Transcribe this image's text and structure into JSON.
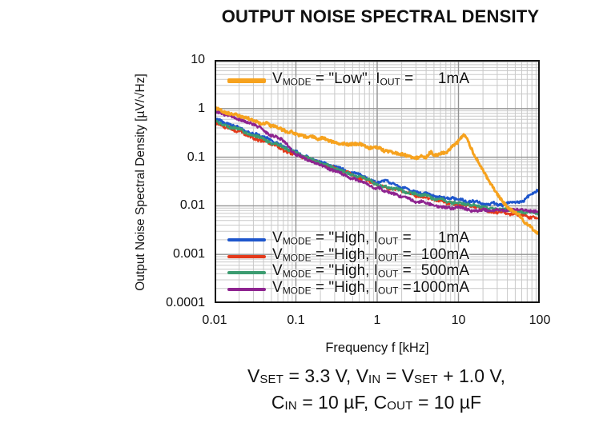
{
  "chart_data": {
    "type": "line",
    "title": "OUTPUT NOISE SPECTRAL DENSITY",
    "xlabel": "Frequency f [kHz]",
    "ylabel": "Output Noise Spectral Density [µV/√Hz]",
    "x_scale": "log",
    "y_scale": "log",
    "xlim": [
      0.01,
      100
    ],
    "ylim": [
      0.0001,
      10
    ],
    "x_ticks": [
      "0.01",
      "0.1",
      "1",
      "10",
      "100"
    ],
    "y_ticks": [
      "10",
      "1",
      "0.1",
      "0.01",
      "0.001",
      "0.0001"
    ],
    "grid": "log major and minor, both axes",
    "legend_position": "top entry inside plot top, four entries inside plot bottom-left",
    "series": [
      {
        "id": "low_1mA",
        "name": "VMODE = \"Low\", IOUT = 1mA",
        "color": "#F6A21E",
        "draw_order": 5,
        "stroke_width": 3,
        "points": [
          [
            0.01,
            1.05
          ],
          [
            0.013,
            0.9
          ],
          [
            0.02,
            0.72
          ],
          [
            0.03,
            0.58
          ],
          [
            0.05,
            0.44
          ],
          [
            0.07,
            0.37
          ],
          [
            0.1,
            0.3
          ],
          [
            0.15,
            0.26
          ],
          [
            0.2,
            0.24
          ],
          [
            0.3,
            0.21
          ],
          [
            0.5,
            0.185
          ],
          [
            0.7,
            0.168
          ],
          [
            1,
            0.15
          ],
          [
            1.5,
            0.13
          ],
          [
            2,
            0.115
          ],
          [
            2.5,
            0.105
          ],
          [
            3,
            0.1
          ],
          [
            4,
            0.099
          ],
          [
            4.6,
            0.132
          ],
          [
            5,
            0.106
          ],
          [
            6,
            0.113
          ],
          [
            7,
            0.128
          ],
          [
            8,
            0.152
          ],
          [
            9,
            0.185
          ],
          [
            10,
            0.222
          ],
          [
            11.5,
            0.268
          ],
          [
            12.5,
            0.245
          ],
          [
            14,
            0.165
          ],
          [
            16,
            0.105
          ],
          [
            18,
            0.075
          ],
          [
            20,
            0.054
          ],
          [
            25,
            0.029
          ],
          [
            32,
            0.0155
          ],
          [
            40,
            0.01
          ],
          [
            50,
            0.0072
          ],
          [
            63,
            0.005
          ],
          [
            80,
            0.0035
          ],
          [
            100,
            0.0027
          ]
        ]
      },
      {
        "id": "high_1mA",
        "name": "VMODE = \"High, IOUT = 1mA",
        "color": "#1E56CC",
        "draw_order": 1,
        "stroke_width": 2.4,
        "points": [
          [
            0.01,
            0.58
          ],
          [
            0.02,
            0.4
          ],
          [
            0.03,
            0.31
          ],
          [
            0.05,
            0.215
          ],
          [
            0.07,
            0.17
          ],
          [
            0.1,
            0.125
          ],
          [
            0.15,
            0.098
          ],
          [
            0.2,
            0.081
          ],
          [
            0.3,
            0.062
          ],
          [
            0.5,
            0.047
          ],
          [
            0.7,
            0.038
          ],
          [
            1,
            0.03
          ],
          [
            1.3,
            0.034
          ],
          [
            1.6,
            0.027
          ],
          [
            2,
            0.024
          ],
          [
            3,
            0.02
          ],
          [
            5,
            0.016
          ],
          [
            7,
            0.0145
          ],
          [
            10,
            0.013
          ],
          [
            15,
            0.0118
          ],
          [
            20,
            0.0112
          ],
          [
            30,
            0.0108
          ],
          [
            40,
            0.011
          ],
          [
            50,
            0.0118
          ],
          [
            60,
            0.013
          ],
          [
            80,
            0.0165
          ],
          [
            100,
            0.0225
          ]
        ]
      },
      {
        "id": "high_100mA",
        "name": "VMODE = \"High, IOUT = 100mA",
        "color": "#E4391A",
        "draw_order": 2,
        "stroke_width": 2.4,
        "points": [
          [
            0.01,
            0.5
          ],
          [
            0.02,
            0.34
          ],
          [
            0.05,
            0.185
          ],
          [
            0.1,
            0.112
          ],
          [
            0.2,
            0.073
          ],
          [
            0.3,
            0.057
          ],
          [
            0.5,
            0.043
          ],
          [
            1,
            0.027
          ],
          [
            2,
            0.0195
          ],
          [
            3,
            0.0165
          ],
          [
            5,
            0.0138
          ],
          [
            10,
            0.0106
          ],
          [
            15,
            0.0094
          ],
          [
            20,
            0.0086
          ],
          [
            30,
            0.0076
          ],
          [
            40,
            0.0071
          ],
          [
            60,
            0.0064
          ],
          [
            80,
            0.0059
          ],
          [
            100,
            0.0056
          ]
        ]
      },
      {
        "id": "high_500mA",
        "name": "VMODE = \"High, IOUT = 500mA",
        "color": "#3B9C70",
        "draw_order": 3,
        "stroke_width": 2.4,
        "points": [
          [
            0.01,
            0.55
          ],
          [
            0.02,
            0.37
          ],
          [
            0.05,
            0.2
          ],
          [
            0.1,
            0.12
          ],
          [
            0.2,
            0.077
          ],
          [
            0.5,
            0.045
          ],
          [
            1,
            0.028
          ],
          [
            2,
            0.0205
          ],
          [
            5,
            0.0142
          ],
          [
            10,
            0.0112
          ],
          [
            20,
            0.0092
          ],
          [
            30,
            0.0084
          ],
          [
            50,
            0.0078
          ],
          [
            70,
            0.0073
          ],
          [
            100,
            0.007
          ]
        ]
      },
      {
        "id": "high_1000mA",
        "name": "VMODE = \"High, IOUT = 1000mA",
        "color": "#8E2490",
        "draw_order": 4,
        "stroke_width": 2.4,
        "points": [
          [
            0.01,
            0.88
          ],
          [
            0.013,
            0.8
          ],
          [
            0.016,
            0.68
          ],
          [
            0.02,
            0.6
          ],
          [
            0.03,
            0.45
          ],
          [
            0.04,
            0.36
          ],
          [
            0.05,
            0.295
          ],
          [
            0.07,
            0.21
          ],
          [
            0.1,
            0.115
          ],
          [
            0.13,
            0.092
          ],
          [
            0.2,
            0.067
          ],
          [
            0.3,
            0.051
          ],
          [
            0.5,
            0.037
          ],
          [
            0.7,
            0.029
          ],
          [
            1,
            0.023
          ],
          [
            1.5,
            0.018
          ],
          [
            2,
            0.015
          ],
          [
            3,
            0.0125
          ],
          [
            5,
            0.0105
          ],
          [
            7,
            0.0095
          ],
          [
            10,
            0.0088
          ],
          [
            15,
            0.0082
          ],
          [
            20,
            0.008
          ],
          [
            30,
            0.0079
          ],
          [
            50,
            0.0081
          ],
          [
            70,
            0.0083
          ],
          [
            100,
            0.008
          ]
        ]
      }
    ]
  },
  "legend_top": {
    "rows": [
      {
        "series_index": 0,
        "segments": [
          {
            "t": "V"
          },
          {
            "t": "MODE",
            "sub": true
          },
          {
            "t": " = \"Low\", "
          },
          {
            "t": "I"
          },
          {
            "t": "OUT",
            "sub": true
          },
          {
            "t": " ="
          },
          {
            "t": "1mA",
            "val": true
          }
        ]
      }
    ]
  },
  "legend_bottom": {
    "rows": [
      {
        "series_index": 1,
        "segments": [
          {
            "t": "V"
          },
          {
            "t": "MODE",
            "sub": true
          },
          {
            "t": " = \"High, "
          },
          {
            "t": "I"
          },
          {
            "t": "OUT",
            "sub": true
          },
          {
            "t": " ="
          },
          {
            "t": "1mA",
            "val": true
          }
        ]
      },
      {
        "series_index": 2,
        "segments": [
          {
            "t": "V"
          },
          {
            "t": "MODE",
            "sub": true
          },
          {
            "t": " = \"High, "
          },
          {
            "t": "I"
          },
          {
            "t": "OUT",
            "sub": true
          },
          {
            "t": " ="
          },
          {
            "t": "100mA",
            "val": true
          }
        ]
      },
      {
        "series_index": 3,
        "segments": [
          {
            "t": "V"
          },
          {
            "t": "MODE",
            "sub": true
          },
          {
            "t": " = \"High, "
          },
          {
            "t": "I"
          },
          {
            "t": "OUT",
            "sub": true
          },
          {
            "t": " ="
          },
          {
            "t": "500mA",
            "val": true
          }
        ]
      },
      {
        "series_index": 4,
        "segments": [
          {
            "t": "V"
          },
          {
            "t": "MODE",
            "sub": true
          },
          {
            "t": " = \"High, "
          },
          {
            "t": "I"
          },
          {
            "t": "OUT",
            "sub": true
          },
          {
            "t": " ="
          },
          {
            "t": "1000mA",
            "val": true
          }
        ]
      }
    ]
  },
  "caption": {
    "line1": [
      {
        "t": "V"
      },
      {
        "t": "SET",
        "sub": true
      },
      {
        "t": " = 3.3 V, "
      },
      {
        "t": "V"
      },
      {
        "t": "IN",
        "sub": true
      },
      {
        "t": " = "
      },
      {
        "t": "V"
      },
      {
        "t": "SET",
        "sub": true
      },
      {
        "t": " + 1.0 V,"
      }
    ],
    "line2": [
      {
        "t": "C"
      },
      {
        "t": "IN",
        "sub": true
      },
      {
        "t": " = 10 µF, "
      },
      {
        "t": "C"
      },
      {
        "t": "OUT",
        "sub": true
      },
      {
        "t": " = 10 µF"
      }
    ]
  },
  "colors": {
    "grid_major": "#929292",
    "grid_minor": "#c9c9c9",
    "frame": "#141414",
    "text": "#111111",
    "background": "#ffffff"
  }
}
